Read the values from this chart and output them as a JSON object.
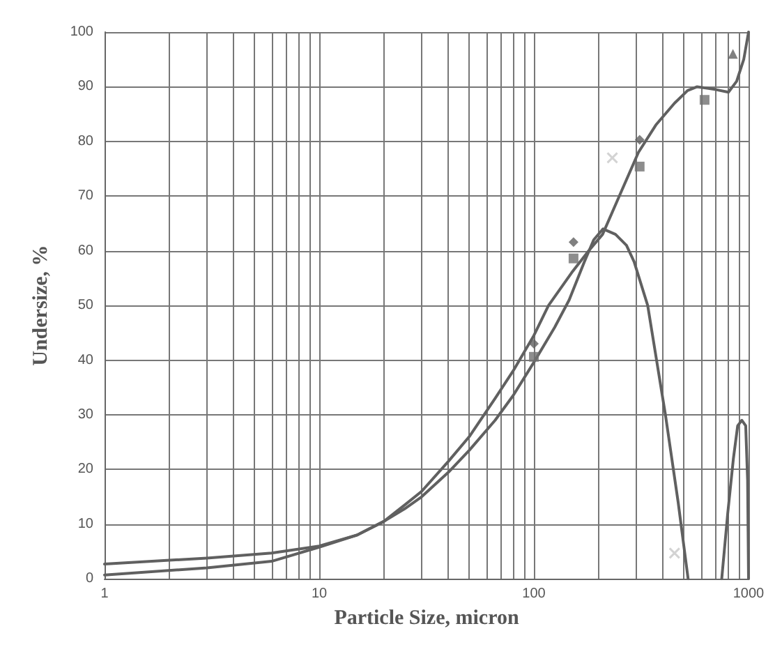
{
  "chart_data": {
    "type": "line",
    "xlabel": "Particle Size, micron",
    "ylabel": "Undersize, %",
    "log": "x",
    "grid": true,
    "line_style": "solid",
    "xlim": [
      1,
      1000
    ],
    "ylim": [
      0,
      100
    ],
    "xticks": [
      1,
      {
        "value": 2,
        "label": null
      },
      {
        "value": 3,
        "label": null
      },
      {
        "value": 4,
        "label": null
      },
      {
        "value": 5,
        "label": null
      },
      {
        "value": 6,
        "label": null
      },
      {
        "value": 7,
        "label": null
      },
      {
        "value": 8,
        "label": null
      },
      {
        "value": 9,
        "label": null
      },
      10,
      {
        "value": 20,
        "label": null
      },
      {
        "value": 30,
        "label": null
      },
      {
        "value": 40,
        "label": null
      },
      {
        "value": 50,
        "label": null
      },
      {
        "value": 60,
        "label": null
      },
      {
        "value": 70,
        "label": null
      },
      {
        "value": 80,
        "label": null
      },
      {
        "value": 90,
        "label": null
      },
      100,
      {
        "value": 200,
        "label": null
      },
      {
        "value": 300,
        "label": null
      },
      {
        "value": 400,
        "label": null
      },
      {
        "value": 500,
        "label": null
      },
      {
        "value": 600,
        "label": null
      },
      {
        "value": 700,
        "label": null
      },
      {
        "value": 800,
        "label": null
      },
      {
        "value": 900,
        "label": null
      },
      1000
    ],
    "yticks": [
      0,
      10,
      20,
      30,
      40,
      50,
      60,
      70,
      80,
      90,
      100
    ],
    "series": [
      {
        "marker": "none",
        "color": "#606060",
        "x": [
          1,
          3,
          6,
          10,
          15,
          20,
          25,
          30,
          40,
          50,
          66,
          80,
          100,
          117,
          150,
          180,
          209,
          250,
          307,
          370,
          452,
          520,
          576,
          700,
          806,
          880,
          950,
          1000
        ],
        "values": [
          0.7,
          2,
          3.2,
          5.8,
          8,
          10.5,
          13.5,
          16,
          21.5,
          26,
          33,
          38,
          44.5,
          50,
          56,
          60,
          63,
          70,
          78,
          83,
          87,
          89.3,
          90,
          89.5,
          89,
          91,
          95,
          100
        ]
      },
      {
        "marker": "none",
        "color": "#606060",
        "x": [
          1,
          3,
          6,
          10,
          15,
          20,
          25,
          30,
          40,
          50,
          66,
          80,
          100,
          125,
          146,
          172,
          190,
          210,
          240,
          270,
          293,
          339,
          410,
          470,
          523,
          620,
          750,
          800,
          850,
          890,
          931,
          970,
          990,
          1000
        ],
        "values": [
          2.7,
          3.8,
          4.7,
          6,
          8,
          10.5,
          12.8,
          15,
          19.5,
          23.5,
          29,
          33.5,
          39.6,
          46,
          51,
          58,
          62,
          64,
          63,
          61,
          58,
          50,
          30,
          14,
          0,
          null,
          0,
          12,
          22,
          28,
          29,
          28,
          18,
          0
        ]
      },
      {
        "type": "scatter",
        "marker": "diamond",
        "color": "#606060",
        "x": [
          100,
          153,
          311
        ],
        "values": [
          43,
          61.6,
          80.3
        ]
      },
      {
        "type": "scatter",
        "marker": "square",
        "color": "#707070",
        "x": [
          100,
          153,
          311,
          624
        ],
        "values": [
          40.6,
          58.6,
          75.4,
          87.6
        ]
      },
      {
        "type": "scatter",
        "marker": "triangle",
        "color": "#606060",
        "x": [
          846
        ],
        "values": [
          96
        ]
      },
      {
        "type": "scatter",
        "marker": "cross",
        "color": "#c8c8c8",
        "x": [
          232,
          452
        ],
        "values": [
          77,
          4.7
        ]
      }
    ]
  }
}
